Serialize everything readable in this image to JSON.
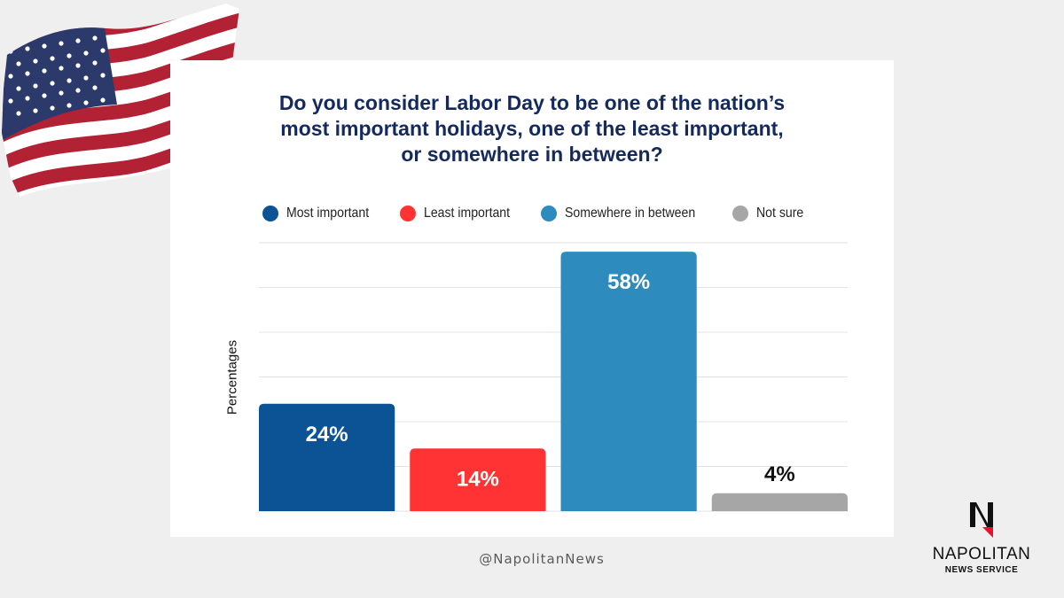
{
  "colors": {
    "most_important": "#0b5394",
    "least_important": "#ff3333",
    "in_between": "#2e8bbd",
    "not_sure": "#a6a6a6",
    "title": "#152a5c"
  },
  "chart_data": {
    "type": "bar",
    "title": "Do you consider Labor Day to be one of the nation’s most important holidays, one of the least important, or somewhere in between?",
    "title_lines": [
      "Do you consider Labor Day to be one of the nation’s",
      "most important holidays, one of the least important,",
      "or somewhere in between?"
    ],
    "ylabel": "Percentages",
    "ylim": [
      0,
      60
    ],
    "grid": true,
    "legend_position": "top-center",
    "categories": [
      "Most important",
      "Least important",
      "Somewhere in between",
      "Not sure"
    ],
    "values": [
      24,
      14,
      58,
      4
    ],
    "data_labels": [
      "24%",
      "14%",
      "58%",
      "4%"
    ],
    "bar_colors": [
      "#0b5394",
      "#ff3333",
      "#2e8bbd",
      "#a6a6a6"
    ],
    "label_colors": [
      "#ffffff",
      "#ffffff",
      "#ffffff",
      "#111111"
    ]
  },
  "legend": [
    {
      "label": "Most important",
      "color": "#0b5394"
    },
    {
      "label": "Least important",
      "color": "#ff3333"
    },
    {
      "label": "Somewhere in between",
      "color": "#2e8bbd"
    },
    {
      "label": "Not sure",
      "color": "#a6a6a6"
    }
  ],
  "footer": {
    "handle": "@NapolitanNews"
  },
  "logo": {
    "name": "NAPOLITAN",
    "subtitle": "NEWS SERVICE"
  },
  "icons": {
    "flag": "us-flag-icon",
    "logo": "napolitan-logo-icon"
  }
}
